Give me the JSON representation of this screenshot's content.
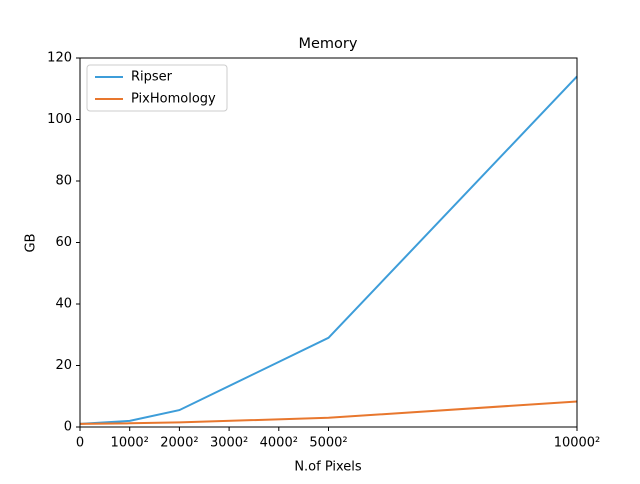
{
  "chart_data": {
    "type": "line",
    "title": "Memory",
    "xlabel": "N.of Pixels",
    "ylabel": "GB",
    "x": [
      0,
      1000,
      2000,
      5000,
      10000
    ],
    "series": [
      {
        "name": "Ripser",
        "color": "#3d9dd9",
        "values": [
          1,
          2,
          5.5,
          29,
          114
        ]
      },
      {
        "name": "PixHomology",
        "color": "#e8772e",
        "values": [
          1,
          1.2,
          1.5,
          3,
          8.3
        ]
      }
    ],
    "xlim": [
      0,
      10000
    ],
    "xticks": [
      0,
      {
        "value": 1000,
        "label": "1000²"
      },
      {
        "value": 2000,
        "label": "2000²"
      },
      {
        "value": 3000,
        "label": "3000²"
      },
      {
        "value": 4000,
        "label": "4000²"
      },
      {
        "value": 5000,
        "label": "5000²"
      },
      {
        "value": 10000,
        "label": "10000²"
      }
    ],
    "ylim": [
      0,
      120
    ],
    "yticks": [
      0,
      20,
      40,
      60,
      80,
      100,
      120
    ],
    "legend": "upper left",
    "grid": false
  }
}
